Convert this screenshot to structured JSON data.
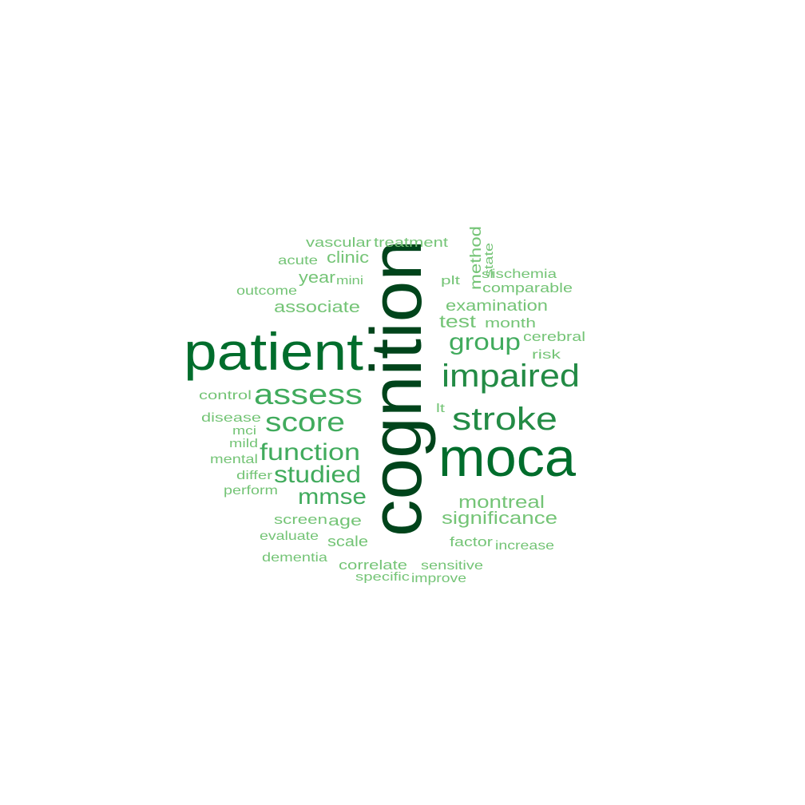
{
  "word_cloud": {
    "colors": {
      "darkest": "#00441b",
      "dark": "#006d2c",
      "medium": "#238b45",
      "light": "#41ab5d",
      "lightest": "#74c476"
    },
    "words": [
      {
        "id": "cognition",
        "text": "cognition",
        "weight": 100,
        "color": "#00441b",
        "rotated": true
      },
      {
        "id": "patient",
        "text": "patient",
        "weight": 82,
        "color": "#006d2c",
        "rotated": false
      },
      {
        "id": "moca",
        "text": "moca",
        "weight": 80,
        "color": "#006d2c",
        "rotated": false
      },
      {
        "id": "impaired",
        "text": "impaired",
        "weight": 52,
        "color": "#238b45",
        "rotated": false
      },
      {
        "id": "stroke",
        "text": "stroke",
        "weight": 52,
        "color": "#238b45",
        "rotated": false
      },
      {
        "id": "assess",
        "text": "assess",
        "weight": 46,
        "color": "#41ab5d",
        "rotated": false
      },
      {
        "id": "score",
        "text": "score",
        "weight": 44,
        "color": "#41ab5d",
        "rotated": false
      },
      {
        "id": "function",
        "text": "function",
        "weight": 40,
        "color": "#41ab5d",
        "rotated": false
      },
      {
        "id": "group",
        "text": "group",
        "weight": 38,
        "color": "#41ab5d",
        "rotated": false
      },
      {
        "id": "studied",
        "text": "studied",
        "weight": 36,
        "color": "#41ab5d",
        "rotated": false
      },
      {
        "id": "mmse",
        "text": "mmse",
        "weight": 34,
        "color": "#41ab5d",
        "rotated": false
      },
      {
        "id": "montreal",
        "text": "montreal",
        "weight": 28,
        "color": "#74c476",
        "rotated": false
      },
      {
        "id": "significance",
        "text": "significance",
        "weight": 28,
        "color": "#74c476",
        "rotated": false
      },
      {
        "id": "test",
        "text": "test",
        "weight": 26,
        "color": "#74c476",
        "rotated": false
      },
      {
        "id": "associate",
        "text": "associate",
        "weight": 26,
        "color": "#74c476",
        "rotated": false
      },
      {
        "id": "year",
        "text": "year",
        "weight": 24,
        "color": "#74c476",
        "rotated": false
      },
      {
        "id": "clinic",
        "text": "clinic",
        "weight": 24,
        "color": "#74c476",
        "rotated": false
      },
      {
        "id": "examination",
        "text": "examination",
        "weight": 24,
        "color": "#74c476",
        "rotated": false
      },
      {
        "id": "method",
        "text": "method",
        "weight": 22,
        "color": "#74c476",
        "rotated": true
      },
      {
        "id": "age",
        "text": "age",
        "weight": 22,
        "color": "#74c476",
        "rotated": false
      },
      {
        "id": "scale",
        "text": "scale",
        "weight": 22,
        "color": "#74c476",
        "rotated": false
      },
      {
        "id": "screen",
        "text": "screen",
        "weight": 20,
        "color": "#74c476",
        "rotated": false
      },
      {
        "id": "correlate",
        "text": "correlate",
        "weight": 20,
        "color": "#74c476",
        "rotated": false
      },
      {
        "id": "factor",
        "text": "factor",
        "weight": 20,
        "color": "#74c476",
        "rotated": false
      },
      {
        "id": "comparable",
        "text": "comparable",
        "weight": 20,
        "color": "#74c476",
        "rotated": false
      },
      {
        "id": "month",
        "text": "month",
        "weight": 20,
        "color": "#74c476",
        "rotated": false
      },
      {
        "id": "cerebral",
        "text": "cerebral",
        "weight": 20,
        "color": "#74c476",
        "rotated": false
      },
      {
        "id": "treatment",
        "text": "treatment",
        "weight": 20,
        "color": "#74c476",
        "rotated": false
      },
      {
        "id": "vascular",
        "text": "vascular",
        "weight": 20,
        "color": "#74c476",
        "rotated": false
      },
      {
        "id": "control",
        "text": "control",
        "weight": 18,
        "color": "#74c476",
        "rotated": false
      },
      {
        "id": "disease",
        "text": "disease",
        "weight": 18,
        "color": "#74c476",
        "rotated": false
      },
      {
        "id": "outcome",
        "text": "outcome",
        "weight": 18,
        "color": "#74c476",
        "rotated": false
      },
      {
        "id": "acute",
        "text": "acute",
        "weight": 18,
        "color": "#74c476",
        "rotated": false
      },
      {
        "id": "risk",
        "text": "risk",
        "weight": 18,
        "color": "#74c476",
        "rotated": false
      },
      {
        "id": "evaluate",
        "text": "evaluate",
        "weight": 18,
        "color": "#74c476",
        "rotated": false
      },
      {
        "id": "dementia",
        "text": "dementia",
        "weight": 18,
        "color": "#74c476",
        "rotated": false
      },
      {
        "id": "sensitive",
        "text": "sensitive",
        "weight": 18,
        "color": "#74c476",
        "rotated": false
      },
      {
        "id": "increase",
        "text": "increase",
        "weight": 18,
        "color": "#74c476",
        "rotated": false
      },
      {
        "id": "improve",
        "text": "improve",
        "weight": 18,
        "color": "#74c476",
        "rotated": false
      },
      {
        "id": "ischemia",
        "text": "ischemia",
        "weight": 18,
        "color": "#74c476",
        "rotated": false
      },
      {
        "id": "mental",
        "text": "mental",
        "weight": 18,
        "color": "#74c476",
        "rotated": false
      },
      {
        "id": "perform",
        "text": "perform",
        "weight": 17,
        "color": "#74c476",
        "rotated": false
      },
      {
        "id": "differ",
        "text": "differ",
        "weight": 17,
        "color": "#74c476",
        "rotated": false
      },
      {
        "id": "mini",
        "text": "mini",
        "weight": 17,
        "color": "#74c476",
        "rotated": false
      },
      {
        "id": "plt",
        "text": "plt",
        "weight": 17,
        "color": "#74c476",
        "rotated": false
      },
      {
        "id": "state",
        "text": "state",
        "weight": 16,
        "color": "#74c476",
        "rotated": true
      },
      {
        "id": "specific",
        "text": "specific",
        "weight": 16,
        "color": "#74c476",
        "rotated": false
      },
      {
        "id": "mild",
        "text": "mild",
        "weight": 16,
        "color": "#74c476",
        "rotated": false
      },
      {
        "id": "mci",
        "text": "mci",
        "weight": 16,
        "color": "#74c476",
        "rotated": false
      },
      {
        "id": "si",
        "text": "si",
        "weight": 16,
        "color": "#74c476",
        "rotated": false
      },
      {
        "id": "lt",
        "text": "lt",
        "weight": 16,
        "color": "#74c476",
        "rotated": false
      }
    ]
  }
}
